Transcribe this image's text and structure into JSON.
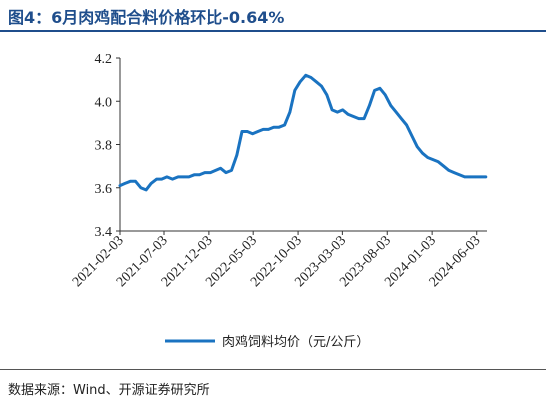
{
  "title": "图4：6月肉鸡配合料价格环比-0.64%",
  "source": "数据来源：Wind、开源证券研究所",
  "chart_data": {
    "type": "line",
    "ylim": [
      3.4,
      4.2
    ],
    "yticks": [
      "3.4",
      "3.6",
      "3.8",
      "4.0",
      "4.2"
    ],
    "xticks": [
      "2021-02-03",
      "2021-07-03",
      "2021-12-03",
      "2022-05-03",
      "2022-10-03",
      "2023-03-03",
      "2023-08-03",
      "2024-01-03",
      "2024-06-03"
    ],
    "color": "#1a73c1",
    "series": [
      {
        "name": "肉鸡饲料均价（元/公斤）",
        "x": [
          "2021-02-03",
          "2021-02-20",
          "2021-03-10",
          "2021-03-28",
          "2021-04-15",
          "2021-05-03",
          "2021-05-20",
          "2021-06-08",
          "2021-06-25",
          "2021-07-13",
          "2021-08-01",
          "2021-08-20",
          "2021-09-08",
          "2021-09-26",
          "2021-10-14",
          "2021-11-01",
          "2021-11-19",
          "2021-12-08",
          "2021-12-26",
          "2022-01-12",
          "2022-01-30",
          "2022-02-18",
          "2022-03-08",
          "2022-03-26",
          "2022-04-13",
          "2022-05-01",
          "2022-05-19",
          "2022-06-06",
          "2022-06-24",
          "2022-07-12",
          "2022-07-30",
          "2022-08-18",
          "2022-09-05",
          "2022-09-22",
          "2022-10-10",
          "2022-10-29",
          "2022-11-16",
          "2022-12-04",
          "2022-12-22",
          "2023-01-09",
          "2023-01-27",
          "2023-02-14",
          "2023-03-04",
          "2023-03-22",
          "2023-04-09",
          "2023-04-28",
          "2023-05-16",
          "2023-06-03",
          "2023-06-21",
          "2023-07-09",
          "2023-07-27",
          "2023-08-15",
          "2023-09-02",
          "2023-09-20",
          "2023-10-08",
          "2023-10-26",
          "2023-11-13",
          "2023-12-01",
          "2023-12-19",
          "2024-01-06",
          "2024-01-24",
          "2024-02-11",
          "2024-02-29",
          "2024-03-18",
          "2024-04-05",
          "2024-04-23",
          "2024-05-11",
          "2024-05-29",
          "2024-06-16",
          "2024-07-04"
        ],
        "values": [
          3.61,
          3.62,
          3.63,
          3.63,
          3.6,
          3.59,
          3.62,
          3.64,
          3.64,
          3.65,
          3.64,
          3.65,
          3.65,
          3.65,
          3.66,
          3.66,
          3.67,
          3.67,
          3.68,
          3.69,
          3.67,
          3.68,
          3.75,
          3.86,
          3.86,
          3.85,
          3.86,
          3.87,
          3.87,
          3.88,
          3.88,
          3.89,
          3.95,
          4.05,
          4.09,
          4.12,
          4.11,
          4.09,
          4.07,
          4.03,
          3.96,
          3.95,
          3.96,
          3.94,
          3.93,
          3.92,
          3.92,
          3.98,
          4.05,
          4.06,
          4.03,
          3.98,
          3.95,
          3.92,
          3.89,
          3.84,
          3.79,
          3.76,
          3.74,
          3.73,
          3.72,
          3.7,
          3.68,
          3.67,
          3.66,
          3.65,
          3.65,
          3.65,
          3.65,
          3.65
        ]
      }
    ]
  }
}
